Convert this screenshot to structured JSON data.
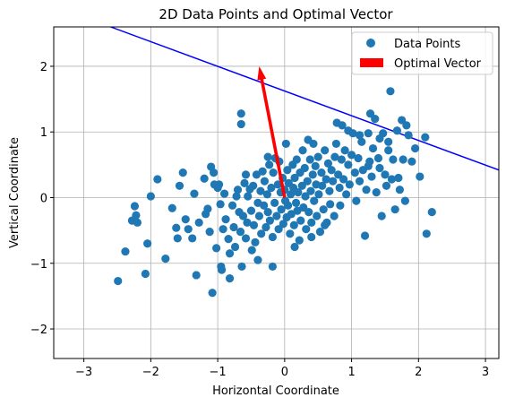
{
  "chart_data": {
    "type": "scatter",
    "title": "2D Data Points and Optimal Vector",
    "xlabel": "Horizontal Coordinate",
    "ylabel": "Vertical Coordinate",
    "xlim": [
      -3.45,
      3.2
    ],
    "ylim": [
      -2.45,
      2.6
    ],
    "grid": true,
    "xticks": [
      -3,
      -2,
      -1,
      0,
      1,
      2,
      3
    ],
    "xtick_labels": [
      "−3",
      "−2",
      "−1",
      "0",
      "1",
      "2",
      "3"
    ],
    "yticks": [
      -2,
      -1,
      0,
      1,
      2
    ],
    "ytick_labels": [
      "−2",
      "−1",
      "0",
      "1",
      "2"
    ],
    "legend": {
      "position": "top-right",
      "entries": [
        {
          "label": "Data Points",
          "marker": "circle",
          "color": "#1f77b4"
        },
        {
          "label": "Optimal Vector",
          "marker": "rect",
          "color": "#ff0000"
        }
      ]
    },
    "colors": {
      "points": "#1f77b4",
      "vector": "#ff0000",
      "line": "#0000ff",
      "grid": "#b0b0b0"
    },
    "vector": {
      "x0": 0,
      "y0": 0,
      "x1": -0.38,
      "y1": 2.0
    },
    "line": {
      "x": [
        -3.45,
        3.2
      ],
      "y": [
        2.92,
        0.42
      ]
    },
    "series": [
      {
        "name": "Data Points",
        "points": [
          [
            -2.49,
            -1.27
          ],
          [
            -2.38,
            -0.82
          ],
          [
            -2.28,
            -0.35
          ],
          [
            -2.24,
            -0.13
          ],
          [
            -2.2,
            -0.38
          ],
          [
            -2.22,
            -0.27
          ],
          [
            -2.08,
            -1.16
          ],
          [
            -2.05,
            -0.7
          ],
          [
            -2.0,
            0.02
          ],
          [
            -1.9,
            0.28
          ],
          [
            -1.78,
            -0.93
          ],
          [
            -1.68,
            -0.16
          ],
          [
            -1.62,
            -0.46
          ],
          [
            -1.57,
            0.18
          ],
          [
            -1.52,
            0.38
          ],
          [
            -1.48,
            -0.33
          ],
          [
            -1.44,
            -0.48
          ],
          [
            -1.38,
            -0.62
          ],
          [
            -1.35,
            0.06
          ],
          [
            -1.32,
            -1.18
          ],
          [
            -1.28,
            -0.38
          ],
          [
            -1.2,
            0.29
          ],
          [
            -1.15,
            -0.17
          ],
          [
            -1.12,
            -0.52
          ],
          [
            -1.1,
            0.47
          ],
          [
            -1.08,
            -1.45
          ],
          [
            -1.06,
            0.38
          ],
          [
            -1.02,
            -0.77
          ],
          [
            -1.0,
            0.15
          ],
          [
            -0.98,
            0.2
          ],
          [
            -0.96,
            -0.1
          ],
          [
            -0.95,
            -1.05
          ],
          [
            -0.94,
            -1.1
          ],
          [
            -0.92,
            -0.48
          ],
          [
            -0.9,
            0.06
          ],
          [
            -0.88,
            -0.33
          ],
          [
            -0.84,
            -0.63
          ],
          [
            -0.82,
            -1.23
          ],
          [
            -0.78,
            -0.12
          ],
          [
            -0.76,
            -0.45
          ],
          [
            -0.74,
            -0.75
          ],
          [
            -0.72,
            0.02
          ],
          [
            -0.7,
            0.12
          ],
          [
            -0.68,
            -0.22
          ],
          [
            -0.66,
            -0.52
          ],
          [
            -0.64,
            -1.05
          ],
          [
            -0.62,
            -0.28
          ],
          [
            -0.6,
            0.22
          ],
          [
            -0.58,
            -0.62
          ],
          [
            -0.56,
            -0.38
          ],
          [
            -0.55,
            0.02
          ],
          [
            -0.52,
            0.13
          ],
          [
            -0.5,
            -0.2
          ],
          [
            -0.49,
            -0.8
          ],
          [
            -0.47,
            0.18
          ],
          [
            -0.46,
            -0.42
          ],
          [
            -0.44,
            -0.68
          ],
          [
            -0.42,
            0.35
          ],
          [
            -0.4,
            -0.08
          ],
          [
            -0.38,
            -0.28
          ],
          [
            -0.36,
            0.1
          ],
          [
            -0.35,
            -0.55
          ],
          [
            -0.33,
            0.4
          ],
          [
            -0.31,
            -0.12
          ],
          [
            -0.3,
            0.25
          ],
          [
            -0.28,
            -0.45
          ],
          [
            -0.26,
            0.05
          ],
          [
            -0.25,
            -0.22
          ],
          [
            -0.23,
            0.5
          ],
          [
            -0.22,
            -0.35
          ],
          [
            -0.2,
            0.15
          ],
          [
            -0.18,
            -0.6
          ],
          [
            -0.17,
            0.38
          ],
          [
            -0.15,
            -0.08
          ],
          [
            -0.14,
            0.6
          ],
          [
            -0.12,
            -0.28
          ],
          [
            -0.1,
            0.2
          ],
          [
            -0.09,
            -0.48
          ],
          [
            -0.08,
            0.55
          ],
          [
            -0.06,
            0.08
          ],
          [
            -0.05,
            -0.18
          ],
          [
            -0.03,
            0.3
          ],
          [
            -0.02,
            -0.4
          ],
          [
            0.0,
            0.12
          ],
          [
            0.01,
            -0.05
          ],
          [
            0.02,
            0.82
          ],
          [
            0.03,
            -0.3
          ],
          [
            0.04,
            0.42
          ],
          [
            0.05,
            -0.12
          ],
          [
            0.06,
            0.22
          ],
          [
            0.08,
            -0.55
          ],
          [
            0.09,
            0.05
          ],
          [
            0.1,
            -0.25
          ],
          [
            0.12,
            0.5
          ],
          [
            0.13,
            0.15
          ],
          [
            0.14,
            -0.42
          ],
          [
            0.15,
            0.3
          ],
          [
            0.17,
            -0.08
          ],
          [
            0.18,
            0.58
          ],
          [
            0.19,
            -0.2
          ],
          [
            0.2,
            0.08
          ],
          [
            0.22,
            -0.65
          ],
          [
            0.23,
            0.38
          ],
          [
            0.24,
            -0.35
          ],
          [
            0.26,
            0.18
          ],
          [
            0.27,
            0.72
          ],
          [
            0.28,
            -0.15
          ],
          [
            0.3,
            0.45
          ],
          [
            0.31,
            0.02
          ],
          [
            0.32,
            -0.48
          ],
          [
            0.34,
            0.25
          ],
          [
            0.35,
            0.88
          ],
          [
            0.36,
            -0.22
          ],
          [
            0.38,
            0.58
          ],
          [
            0.39,
            0.1
          ],
          [
            0.4,
            -0.38
          ],
          [
            0.42,
            0.35
          ],
          [
            0.43,
            0.82
          ],
          [
            0.44,
            -0.05
          ],
          [
            0.46,
            0.48
          ],
          [
            0.47,
            0.2
          ],
          [
            0.48,
            -0.28
          ],
          [
            0.5,
            0.62
          ],
          [
            0.51,
            0.05
          ],
          [
            0.53,
            -0.52
          ],
          [
            0.55,
            0.38
          ],
          [
            0.56,
            0.18
          ],
          [
            0.58,
            -0.18
          ],
          [
            0.6,
            0.72
          ],
          [
            0.62,
            0.28
          ],
          [
            0.63,
            -0.38
          ],
          [
            0.65,
            0.52
          ],
          [
            0.67,
            0.1
          ],
          [
            0.68,
            -0.1
          ],
          [
            0.7,
            0.42
          ],
          [
            0.72,
            0.25
          ],
          [
            0.74,
            -0.28
          ],
          [
            0.75,
            0.62
          ],
          [
            0.77,
            0.82
          ],
          [
            0.78,
            1.14
          ],
          [
            0.8,
            0.35
          ],
          [
            0.82,
            0.15
          ],
          [
            0.83,
            -0.12
          ],
          [
            0.85,
            0.58
          ],
          [
            0.86,
            1.1
          ],
          [
            0.88,
            0.28
          ],
          [
            0.9,
            0.72
          ],
          [
            0.92,
            0.05
          ],
          [
            0.95,
            0.5
          ],
          [
            0.97,
            0.2
          ],
          [
            1.0,
            0.65
          ],
          [
            1.02,
            0.98
          ],
          [
            1.05,
            0.38
          ],
          [
            1.07,
            -0.05
          ],
          [
            1.1,
            0.6
          ],
          [
            1.12,
            0.25
          ],
          [
            1.15,
            0.85
          ],
          [
            1.17,
            0.42
          ],
          [
            1.2,
            -0.58
          ],
          [
            1.22,
            0.12
          ],
          [
            1.25,
            0.98
          ],
          [
            1.27,
            0.55
          ],
          [
            1.3,
            0.32
          ],
          [
            1.32,
            0.75
          ],
          [
            1.35,
            1.2
          ],
          [
            1.37,
            0.08
          ],
          [
            1.4,
            0.6
          ],
          [
            1.42,
            0.45
          ],
          [
            1.45,
            -0.28
          ],
          [
            1.47,
            0.98
          ],
          [
            1.5,
            0.35
          ],
          [
            1.52,
            0.18
          ],
          [
            1.55,
            0.72
          ],
          [
            1.58,
            1.62
          ],
          [
            1.6,
            0.28
          ],
          [
            1.62,
            0.58
          ],
          [
            1.65,
            -0.18
          ],
          [
            1.68,
            1.02
          ],
          [
            1.7,
            0.3
          ],
          [
            1.72,
            0.12
          ],
          [
            1.75,
            1.18
          ],
          [
            1.77,
            0.58
          ],
          [
            1.8,
            -0.05
          ],
          [
            1.82,
            1.1
          ],
          [
            1.85,
            0.95
          ],
          [
            1.9,
            0.55
          ],
          [
            1.95,
            0.75
          ],
          [
            2.02,
            0.32
          ],
          [
            2.1,
            0.92
          ],
          [
            2.12,
            -0.55
          ],
          [
            2.2,
            -0.22
          ],
          [
            1.28,
            1.28
          ],
          [
            1.12,
            0.95
          ],
          [
            0.95,
            1.02
          ],
          [
            1.42,
            0.9
          ],
          [
            1.55,
            0.85
          ],
          [
            1.25,
            0.48
          ],
          [
            -0.65,
            1.12
          ],
          [
            -0.65,
            1.28
          ],
          [
            -1.05,
            0.2
          ],
          [
            -0.58,
            0.35
          ],
          [
            -0.82,
            -0.85
          ],
          [
            -0.4,
            -0.95
          ],
          [
            -0.18,
            -1.05
          ],
          [
            -1.18,
            -0.25
          ],
          [
            -1.6,
            -0.62
          ],
          [
            -0.25,
            0.62
          ],
          [
            0.4,
            -0.6
          ],
          [
            0.6,
            -0.42
          ],
          [
            0.15,
            -0.75
          ]
        ]
      }
    ]
  }
}
